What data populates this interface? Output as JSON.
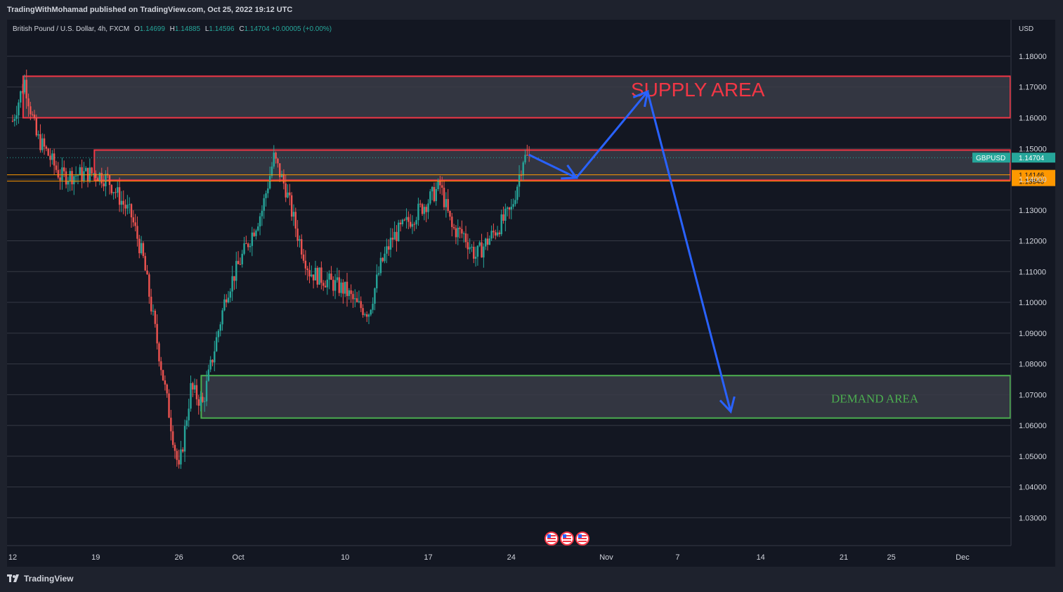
{
  "header": {
    "publisher_line": "TradingWithMohamad published on TradingView.com, Oct 25, 2022 19:12 UTC"
  },
  "legend": {
    "symbol_desc": "British Pound / U.S. Dollar, 4h, FXCM",
    "o_label": "O",
    "o_value": "1.14699",
    "h_label": "H",
    "h_value": "1.14885",
    "l_label": "L",
    "l_value": "1.14596",
    "c_label": "C",
    "c_value": "1.14704",
    "change": "+0.00005 (+0.00%)"
  },
  "footer": {
    "brand": "TradingView"
  },
  "colors": {
    "background": "#131722",
    "grid": "#363a45",
    "up": "#26a69a",
    "down": "#ef5350",
    "supply_border": "#f23645",
    "demand_border": "#4caf50",
    "zone_fill": "#3a3c47",
    "arrow": "#2962ff",
    "price_tag": "#26a69a",
    "level_tag": "#ff9800"
  },
  "chart_data": {
    "type": "candlestick",
    "currency": "USD",
    "y_ticks": [
      "1.18000",
      "1.17000",
      "1.16000",
      "1.15000",
      "1.14000",
      "1.13000",
      "1.12000",
      "1.11000",
      "1.10000",
      "1.09000",
      "1.08000",
      "1.07000",
      "1.06000",
      "1.05000",
      "1.04000",
      "1.03000"
    ],
    "y_range": [
      1.025,
      1.19
    ],
    "x_ticks": [
      {
        "label": "12",
        "date": "2022-09-12"
      },
      {
        "label": "19",
        "date": "2022-09-19"
      },
      {
        "label": "26",
        "date": "2022-09-26"
      },
      {
        "label": "Oct",
        "date": "2022-10-01"
      },
      {
        "label": "10",
        "date": "2022-10-10"
      },
      {
        "label": "17",
        "date": "2022-10-17"
      },
      {
        "label": "24",
        "date": "2022-10-24"
      },
      {
        "label": "Nov",
        "date": "2022-11-01"
      },
      {
        "label": "7",
        "date": "2022-11-07"
      },
      {
        "label": "14",
        "date": "2022-11-14"
      },
      {
        "label": "21",
        "date": "2022-11-21"
      },
      {
        "label": "25",
        "date": "2022-11-25"
      },
      {
        "label": "Dec",
        "date": "2022-12-01"
      }
    ],
    "path_points": [
      [
        "2022-09-12",
        1.159
      ],
      [
        "2022-09-13",
        1.172
      ],
      [
        "2022-09-14",
        1.154
      ],
      [
        "2022-09-15",
        1.148
      ],
      [
        "2022-09-16",
        1.141
      ],
      [
        "2022-09-19",
        1.142
      ],
      [
        "2022-09-20",
        1.14
      ],
      [
        "2022-09-21",
        1.134
      ],
      [
        "2022-09-22",
        1.128
      ],
      [
        "2022-09-23",
        1.114
      ],
      [
        "2022-09-26",
        1.045
      ],
      [
        "2022-09-27",
        1.072
      ],
      [
        "2022-09-28",
        1.067
      ],
      [
        "2022-09-29",
        1.085
      ],
      [
        "2022-09-30",
        1.103
      ],
      [
        "2022-10-03",
        1.13
      ],
      [
        "2022-10-04",
        1.147
      ],
      [
        "2022-10-05",
        1.137
      ],
      [
        "2022-10-06",
        1.122
      ],
      [
        "2022-10-07",
        1.11
      ],
      [
        "2022-10-10",
        1.104
      ],
      [
        "2022-10-11",
        1.099
      ],
      [
        "2022-10-12",
        1.097
      ],
      [
        "2022-10-13",
        1.112
      ],
      [
        "2022-10-14",
        1.121
      ],
      [
        "2022-10-17",
        1.133
      ],
      [
        "2022-10-18",
        1.138
      ],
      [
        "2022-10-19",
        1.124
      ],
      [
        "2022-10-20",
        1.122
      ],
      [
        "2022-10-21",
        1.115
      ],
      [
        "2022-10-24",
        1.13
      ],
      [
        "2022-10-25",
        1.147
      ]
    ],
    "last_price": {
      "label": "GBPUSD",
      "value": "1.14704"
    },
    "levels": [
      {
        "value": "1.14146"
      },
      {
        "value": "1.13940"
      }
    ],
    "zones": [
      {
        "name": "SUPPLY AREA",
        "top": 1.1735,
        "bottom": 1.16,
        "start": "2022-09-13"
      },
      {
        "name": "",
        "top": 1.1495,
        "bottom": 1.1397,
        "start": "2022-09-19"
      },
      {
        "name": "DEMAND AREA",
        "top": 1.0762,
        "bottom": 1.0624,
        "start": "2022-09-28"
      }
    ],
    "projection": [
      [
        "2022-10-25",
        1.148
      ],
      [
        "2022-10-29",
        1.1405
      ],
      [
        "2022-11-04",
        1.1685
      ],
      [
        "2022-11-11",
        1.0645
      ]
    ]
  }
}
